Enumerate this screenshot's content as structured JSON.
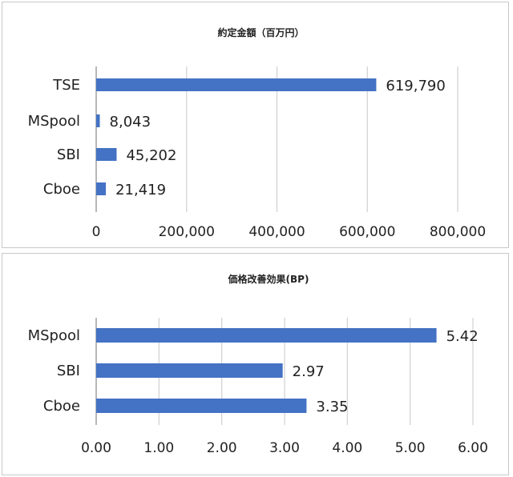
{
  "chart_data": [
    {
      "type": "bar",
      "orientation": "horizontal",
      "title": "約定金額（百万円）",
      "categories": [
        "TSE",
        "MSpool",
        "SBI",
        "Cboe"
      ],
      "values": [
        619790,
        8043,
        45202,
        21419
      ],
      "data_labels": [
        "619,790",
        "8,043",
        "45,202",
        "21,419"
      ],
      "xlim": [
        0,
        800000
      ],
      "x_ticks": [
        0,
        200000,
        400000,
        600000,
        800000
      ],
      "x_tick_labels": [
        "0",
        "200,000",
        "400,000",
        "600,000",
        "800,000"
      ],
      "grid": "vertical",
      "bar_color": "#4472c4"
    },
    {
      "type": "bar",
      "orientation": "horizontal",
      "title": "価格改善効果(BP)",
      "categories": [
        "MSpool",
        "SBI",
        "Cboe"
      ],
      "values": [
        5.42,
        2.97,
        3.35
      ],
      "data_labels": [
        "5.42",
        "2.97",
        "3.35"
      ],
      "xlim": [
        0,
        6
      ],
      "x_ticks": [
        0,
        1,
        2,
        3,
        4,
        5,
        6
      ],
      "x_tick_labels": [
        "0.00",
        "1.00",
        "2.00",
        "3.00",
        "4.00",
        "5.00",
        "6.00"
      ],
      "grid": "vertical",
      "bar_color": "#4472c4"
    }
  ]
}
